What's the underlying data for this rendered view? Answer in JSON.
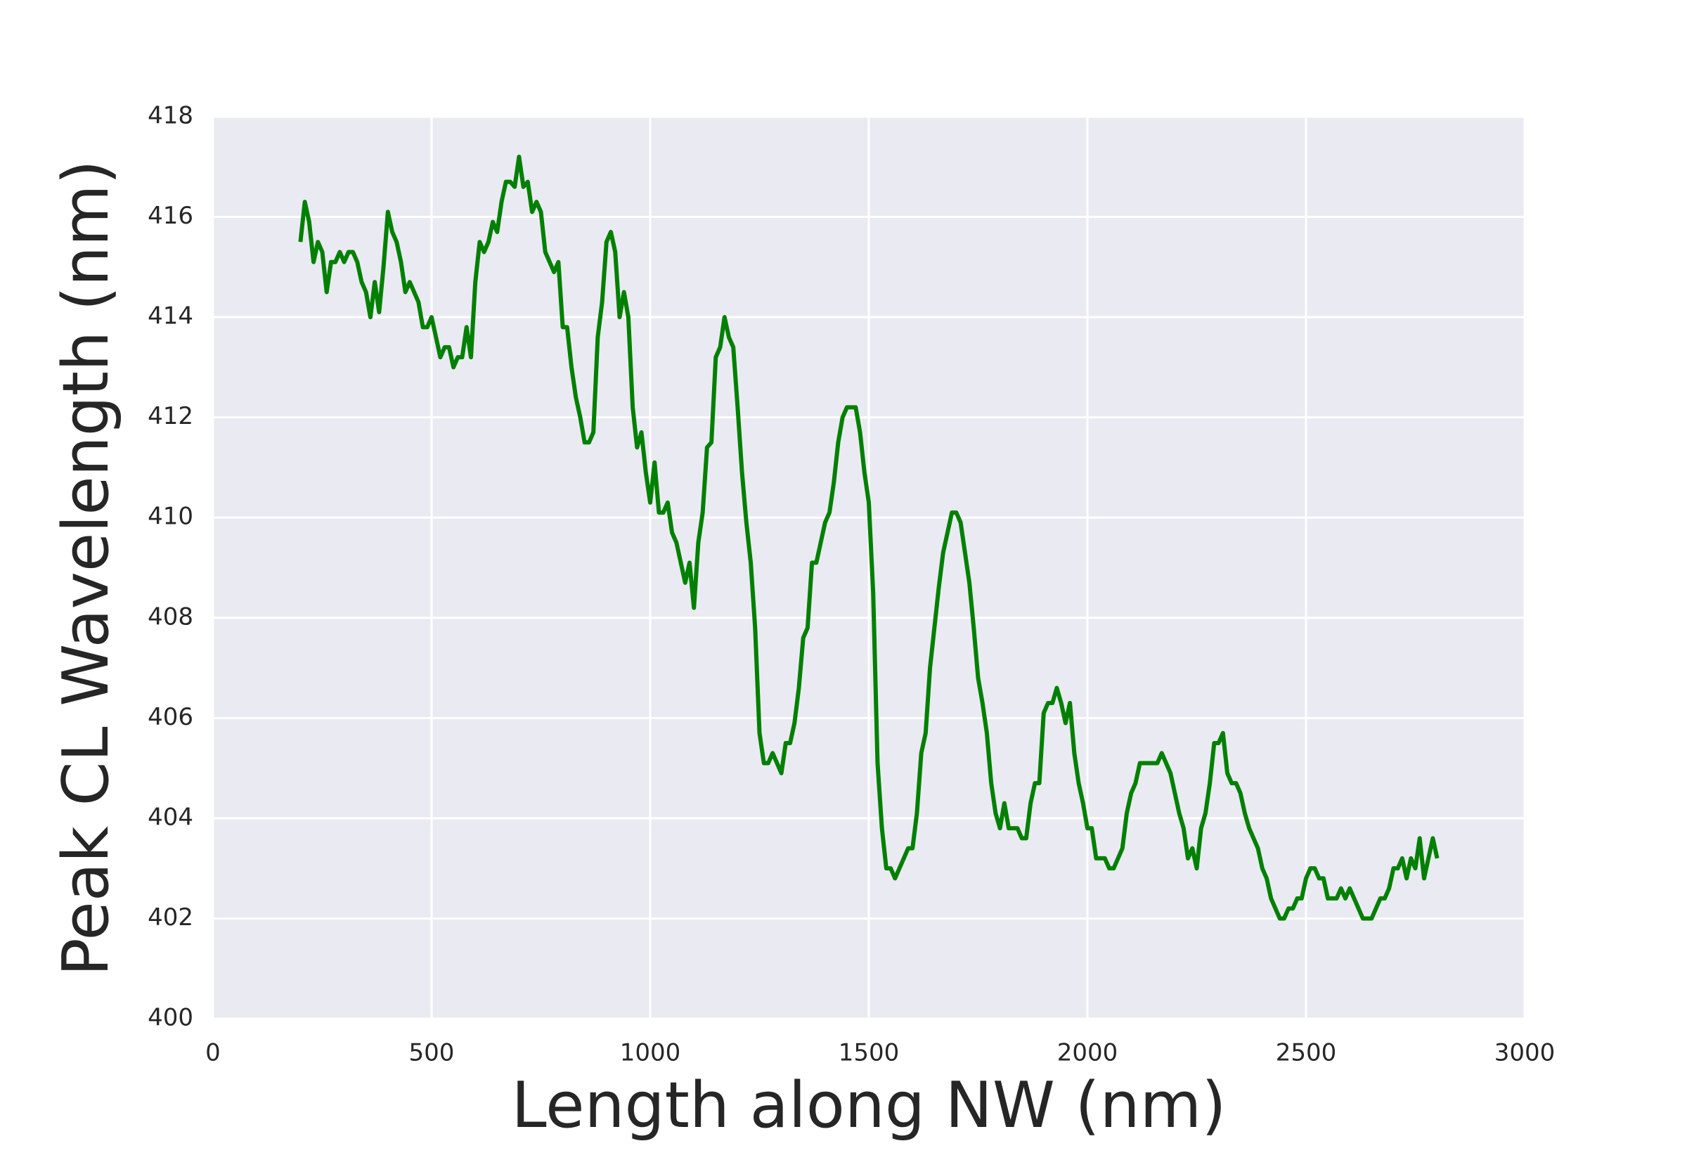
{
  "chart_data": {
    "type": "line",
    "x_label": "Length along NW (nm)",
    "y_label": "Peak CL Wavelength (nm)",
    "xlim": [
      0,
      3000
    ],
    "xticks": [
      0,
      500,
      1000,
      1500,
      2000,
      2500,
      3000
    ],
    "ylim": [
      400,
      418
    ],
    "yticks": [
      400,
      402,
      404,
      406,
      408,
      410,
      412,
      414,
      416,
      418
    ],
    "grid": true,
    "x": [
      200,
      210,
      220,
      230,
      240,
      250,
      260,
      270,
      280,
      290,
      300,
      310,
      320,
      330,
      340,
      350,
      360,
      370,
      380,
      390,
      400,
      410,
      420,
      430,
      440,
      450,
      460,
      470,
      480,
      490,
      500,
      510,
      520,
      530,
      540,
      550,
      560,
      570,
      580,
      590,
      600,
      610,
      620,
      630,
      640,
      650,
      660,
      670,
      680,
      690,
      700,
      710,
      720,
      730,
      740,
      750,
      760,
      770,
      780,
      790,
      800,
      810,
      820,
      830,
      840,
      850,
      860,
      870,
      880,
      890,
      900,
      910,
      920,
      930,
      940,
      950,
      960,
      970,
      980,
      990,
      1000,
      1010,
      1020,
      1030,
      1040,
      1050,
      1060,
      1070,
      1080,
      1090,
      1100,
      1110,
      1120,
      1130,
      1140,
      1150,
      1160,
      1170,
      1180,
      1190,
      1200,
      1210,
      1220,
      1230,
      1240,
      1250,
      1260,
      1270,
      1280,
      1290,
      1300,
      1310,
      1320,
      1330,
      1340,
      1350,
      1360,
      1370,
      1380,
      1390,
      1400,
      1410,
      1420,
      1430,
      1440,
      1450,
      1460,
      1470,
      1480,
      1490,
      1500,
      1510,
      1520,
      1530,
      1540,
      1550,
      1560,
      1570,
      1580,
      1590,
      1600,
      1610,
      1620,
      1630,
      1640,
      1650,
      1660,
      1670,
      1680,
      1690,
      1700,
      1710,
      1720,
      1730,
      1740,
      1750,
      1760,
      1770,
      1780,
      1790,
      1800,
      1810,
      1820,
      1830,
      1840,
      1850,
      1860,
      1870,
      1880,
      1890,
      1900,
      1910,
      1920,
      1930,
      1940,
      1950,
      1960,
      1970,
      1980,
      1990,
      2000,
      2010,
      2020,
      2030,
      2040,
      2050,
      2060,
      2070,
      2080,
      2090,
      2100,
      2110,
      2120,
      2130,
      2140,
      2150,
      2160,
      2170,
      2180,
      2190,
      2200,
      2210,
      2220,
      2230,
      2240,
      2250,
      2260,
      2270,
      2280,
      2290,
      2300,
      2310,
      2320,
      2330,
      2340,
      2350,
      2360,
      2370,
      2380,
      2390,
      2400,
      2410,
      2420,
      2430,
      2440,
      2450,
      2460,
      2470,
      2480,
      2490,
      2500,
      2510,
      2520,
      2530,
      2540,
      2550,
      2560,
      2570,
      2580,
      2590,
      2600,
      2610,
      2620,
      2630,
      2640,
      2650,
      2660,
      2670,
      2680,
      2690,
      2700,
      2710,
      2720,
      2730,
      2740,
      2750,
      2760,
      2770,
      2780,
      2790,
      2800
    ],
    "series": [
      {
        "color": "#008000",
        "values": [
          415.5,
          416.3,
          415.9,
          415.1,
          415.5,
          415.3,
          414.5,
          415.1,
          415.1,
          415.3,
          415.1,
          415.3,
          415.3,
          415.1,
          414.7,
          414.5,
          414.0,
          414.7,
          414.1,
          415.0,
          416.1,
          415.7,
          415.5,
          415.1,
          414.5,
          414.7,
          414.5,
          414.3,
          413.8,
          413.8,
          414.0,
          413.6,
          413.2,
          413.4,
          413.4,
          413.0,
          413.2,
          413.2,
          413.8,
          413.2,
          414.7,
          415.5,
          415.3,
          415.5,
          415.9,
          415.7,
          416.3,
          416.7,
          416.7,
          416.6,
          417.2,
          416.6,
          416.7,
          416.1,
          416.3,
          416.1,
          415.3,
          415.1,
          414.9,
          415.1,
          413.8,
          413.8,
          413.0,
          412.4,
          412.0,
          411.5,
          411.5,
          411.7,
          413.6,
          414.3,
          415.5,
          415.7,
          415.3,
          414.0,
          414.5,
          414.0,
          412.2,
          411.4,
          411.7,
          410.9,
          410.3,
          411.1,
          410.1,
          410.1,
          410.3,
          409.7,
          409.5,
          409.1,
          408.7,
          409.1,
          408.2,
          409.5,
          410.1,
          411.4,
          411.5,
          413.2,
          413.4,
          414.0,
          413.6,
          413.4,
          412.2,
          410.9,
          409.9,
          409.1,
          407.8,
          405.7,
          405.1,
          405.1,
          405.3,
          405.1,
          404.9,
          405.5,
          405.5,
          405.9,
          406.6,
          407.6,
          407.8,
          409.1,
          409.1,
          409.5,
          409.9,
          410.1,
          410.7,
          411.5,
          412.0,
          412.2,
          412.2,
          412.2,
          411.7,
          410.9,
          410.3,
          408.5,
          405.1,
          403.8,
          403.0,
          403.0,
          402.8,
          403.0,
          403.2,
          403.4,
          403.4,
          404.1,
          405.3,
          405.7,
          407.0,
          407.8,
          408.6,
          409.3,
          409.7,
          410.1,
          410.1,
          409.9,
          409.3,
          408.7,
          407.8,
          406.8,
          406.3,
          405.7,
          404.7,
          404.1,
          403.8,
          404.3,
          403.8,
          403.8,
          403.8,
          403.6,
          403.6,
          404.3,
          404.7,
          404.7,
          406.1,
          406.3,
          406.3,
          406.6,
          406.3,
          405.9,
          406.3,
          405.3,
          404.7,
          404.3,
          403.8,
          403.8,
          403.2,
          403.2,
          403.2,
          403.0,
          403.0,
          403.2,
          403.4,
          404.1,
          404.5,
          404.7,
          405.1,
          405.1,
          405.1,
          405.1,
          405.1,
          405.3,
          405.1,
          404.9,
          404.5,
          404.1,
          403.8,
          403.2,
          403.4,
          403.0,
          403.8,
          404.1,
          404.7,
          405.5,
          405.5,
          405.7,
          404.9,
          404.7,
          404.7,
          404.5,
          404.1,
          403.8,
          403.6,
          403.4,
          403.0,
          402.8,
          402.4,
          402.2,
          402.0,
          402.0,
          402.2,
          402.2,
          402.4,
          402.4,
          402.8,
          403.0,
          403.0,
          402.8,
          402.8,
          402.4,
          402.4,
          402.4,
          402.6,
          402.4,
          402.6,
          402.4,
          402.2,
          402.0,
          402.0,
          402.0,
          402.2,
          402.4,
          402.4,
          402.6,
          403.0,
          403.0,
          403.2,
          402.8,
          403.2,
          403.0,
          403.6,
          402.8,
          403.2,
          403.6,
          403.2
        ]
      }
    ]
  }
}
